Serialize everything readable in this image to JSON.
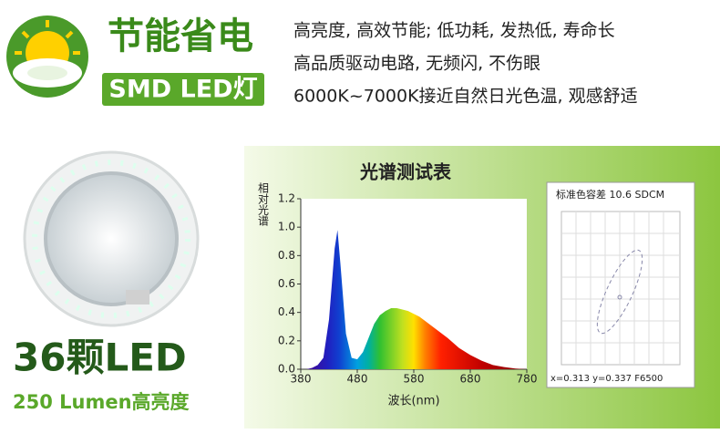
{
  "header": {
    "title": "节能省电",
    "badge": "SMD LED灯",
    "features": [
      "高亮度, 高效节能; 低功耗, 发热低, 寿命长",
      "高品质驱动电路, 无频闪, 不伤眼",
      "6000K~7000K接近自然日光色温, 观感舒适"
    ]
  },
  "product": {
    "count": "36颗LED",
    "lumen": "250 Lumen高亮度"
  },
  "chart_data": {
    "type": "area",
    "title": "光谱测试表",
    "y_label": "相对光谱",
    "x_label": "波长(nm)",
    "x": [
      380,
      390,
      400,
      410,
      420,
      430,
      440,
      445,
      450,
      460,
      470,
      480,
      490,
      500,
      510,
      520,
      530,
      540,
      550,
      560,
      570,
      580,
      590,
      600,
      620,
      640,
      660,
      680,
      700,
      720,
      740,
      760,
      780
    ],
    "values": [
      0,
      0,
      0.01,
      0.03,
      0.08,
      0.35,
      0.85,
      0.98,
      0.75,
      0.25,
      0.08,
      0.07,
      0.12,
      0.22,
      0.32,
      0.38,
      0.41,
      0.43,
      0.43,
      0.42,
      0.41,
      0.39,
      0.37,
      0.34,
      0.28,
      0.22,
      0.15,
      0.1,
      0.06,
      0.03,
      0.015,
      0.005,
      0
    ],
    "xlim": [
      380,
      780
    ],
    "xticks": [
      380,
      480,
      580,
      680,
      780
    ],
    "ylim": [
      0,
      1.2
    ],
    "yticks": [
      {
        "value": 0,
        "label": "0.0"
      },
      0.2,
      0.4,
      0.6,
      0.8,
      {
        "value": 1,
        "label": "1.0"
      },
      1.2
    ]
  },
  "chromaticity": {
    "title": "标准色容差 10.6 SDCM",
    "coords": "x=0.313  y=0.337 F6500"
  }
}
